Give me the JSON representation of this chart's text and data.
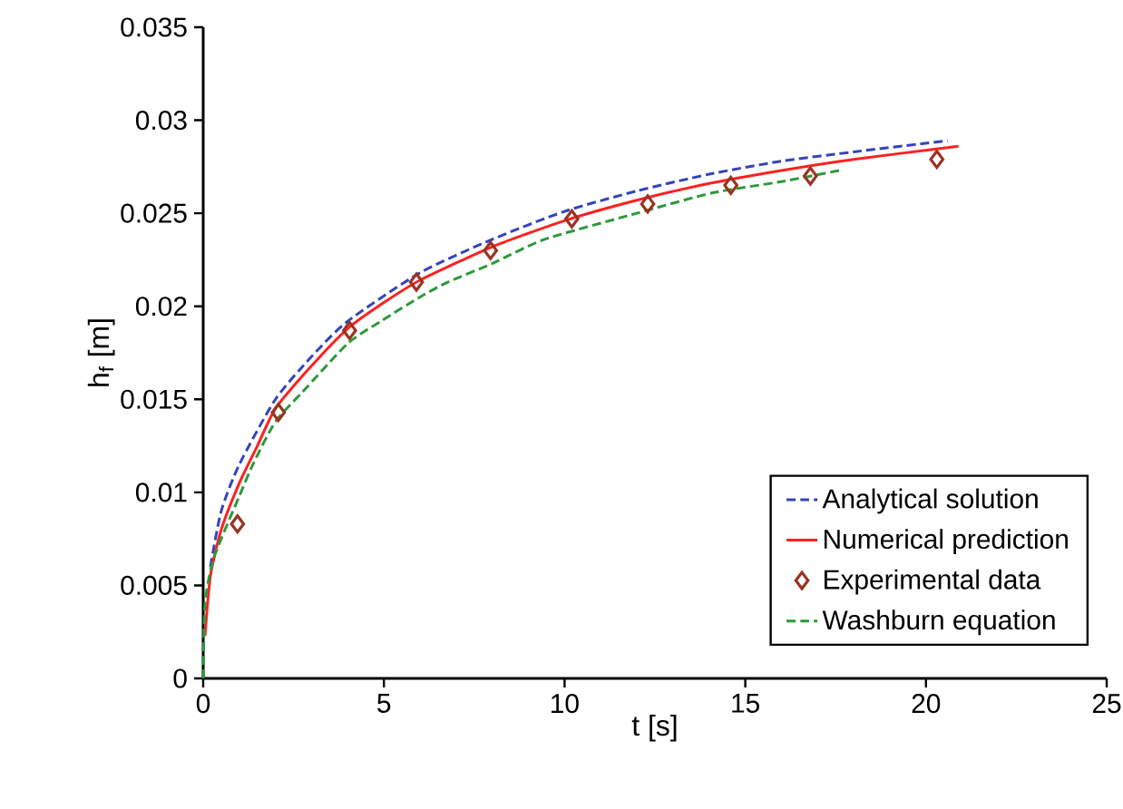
{
  "chart_data": {
    "type": "line",
    "xlabel": "t [s]",
    "ylabel": "h$_{f}$ [m]",
    "xlim": [
      0,
      25
    ],
    "xticks": [
      0,
      5,
      10,
      15,
      20,
      25
    ],
    "ylim": [
      0,
      0.035
    ],
    "yticks": [
      0,
      0.005,
      0.01,
      0.015,
      0.02,
      0.025,
      0.03,
      0.035
    ],
    "grid": false,
    "legend": "bottom right",
    "series": [
      {
        "name": "Analytical solution",
        "color": "#3344bb",
        "line_style": "dashed",
        "marker": "none",
        "x": [
          0.2,
          0.5,
          1,
          2,
          3,
          4,
          6,
          8,
          10,
          12,
          14,
          16,
          18,
          20.6
        ],
        "values": [
          0.006,
          0.009,
          0.0115,
          0.015,
          0.0173,
          0.0192,
          0.0218,
          0.0236,
          0.0251,
          0.0262,
          0.0271,
          0.0278,
          0.0283,
          0.0289
        ]
      },
      {
        "name": "Numerical prediction",
        "color": "#ff2020",
        "line_style": "solid",
        "marker": "none",
        "x": [
          0.05,
          0.2,
          0.5,
          1,
          1.5,
          2,
          3,
          4,
          5,
          6,
          8,
          10,
          12,
          14,
          16,
          18,
          20.9
        ],
        "values": [
          0.0023,
          0.0055,
          0.008,
          0.0105,
          0.0125,
          0.0145,
          0.0168,
          0.0188,
          0.0202,
          0.0214,
          0.0232,
          0.0246,
          0.0257,
          0.0266,
          0.0273,
          0.0279,
          0.0286
        ]
      },
      {
        "name": "Experimental data",
        "type": "scatter",
        "color": "#993322",
        "marker": "diamond",
        "x": [
          0.95,
          2.08,
          4.05,
          5.9,
          7.95,
          10.2,
          12.3,
          14.6,
          16.8,
          20.3
        ],
        "values": [
          0.0083,
          0.0143,
          0.0187,
          0.0213,
          0.023,
          0.0247,
          0.0255,
          0.0265,
          0.027,
          0.0279
        ]
      },
      {
        "name": "Washburn equation",
        "color": "#2a9a3a",
        "line_style": "dashed",
        "marker": "none",
        "x": [
          0,
          0.05,
          0.3,
          1,
          1.4,
          2,
          2.75,
          4,
          4.92,
          6,
          6.77,
          8,
          9.45,
          12,
          14.1,
          16,
          17.6
        ],
        "values": [
          0,
          0.004,
          0.0065,
          0.0098,
          0.0116,
          0.0138,
          0.0154,
          0.018,
          0.0192,
          0.0205,
          0.0213,
          0.0223,
          0.0236,
          0.025,
          0.0261,
          0.0267,
          0.0273
        ]
      }
    ]
  }
}
